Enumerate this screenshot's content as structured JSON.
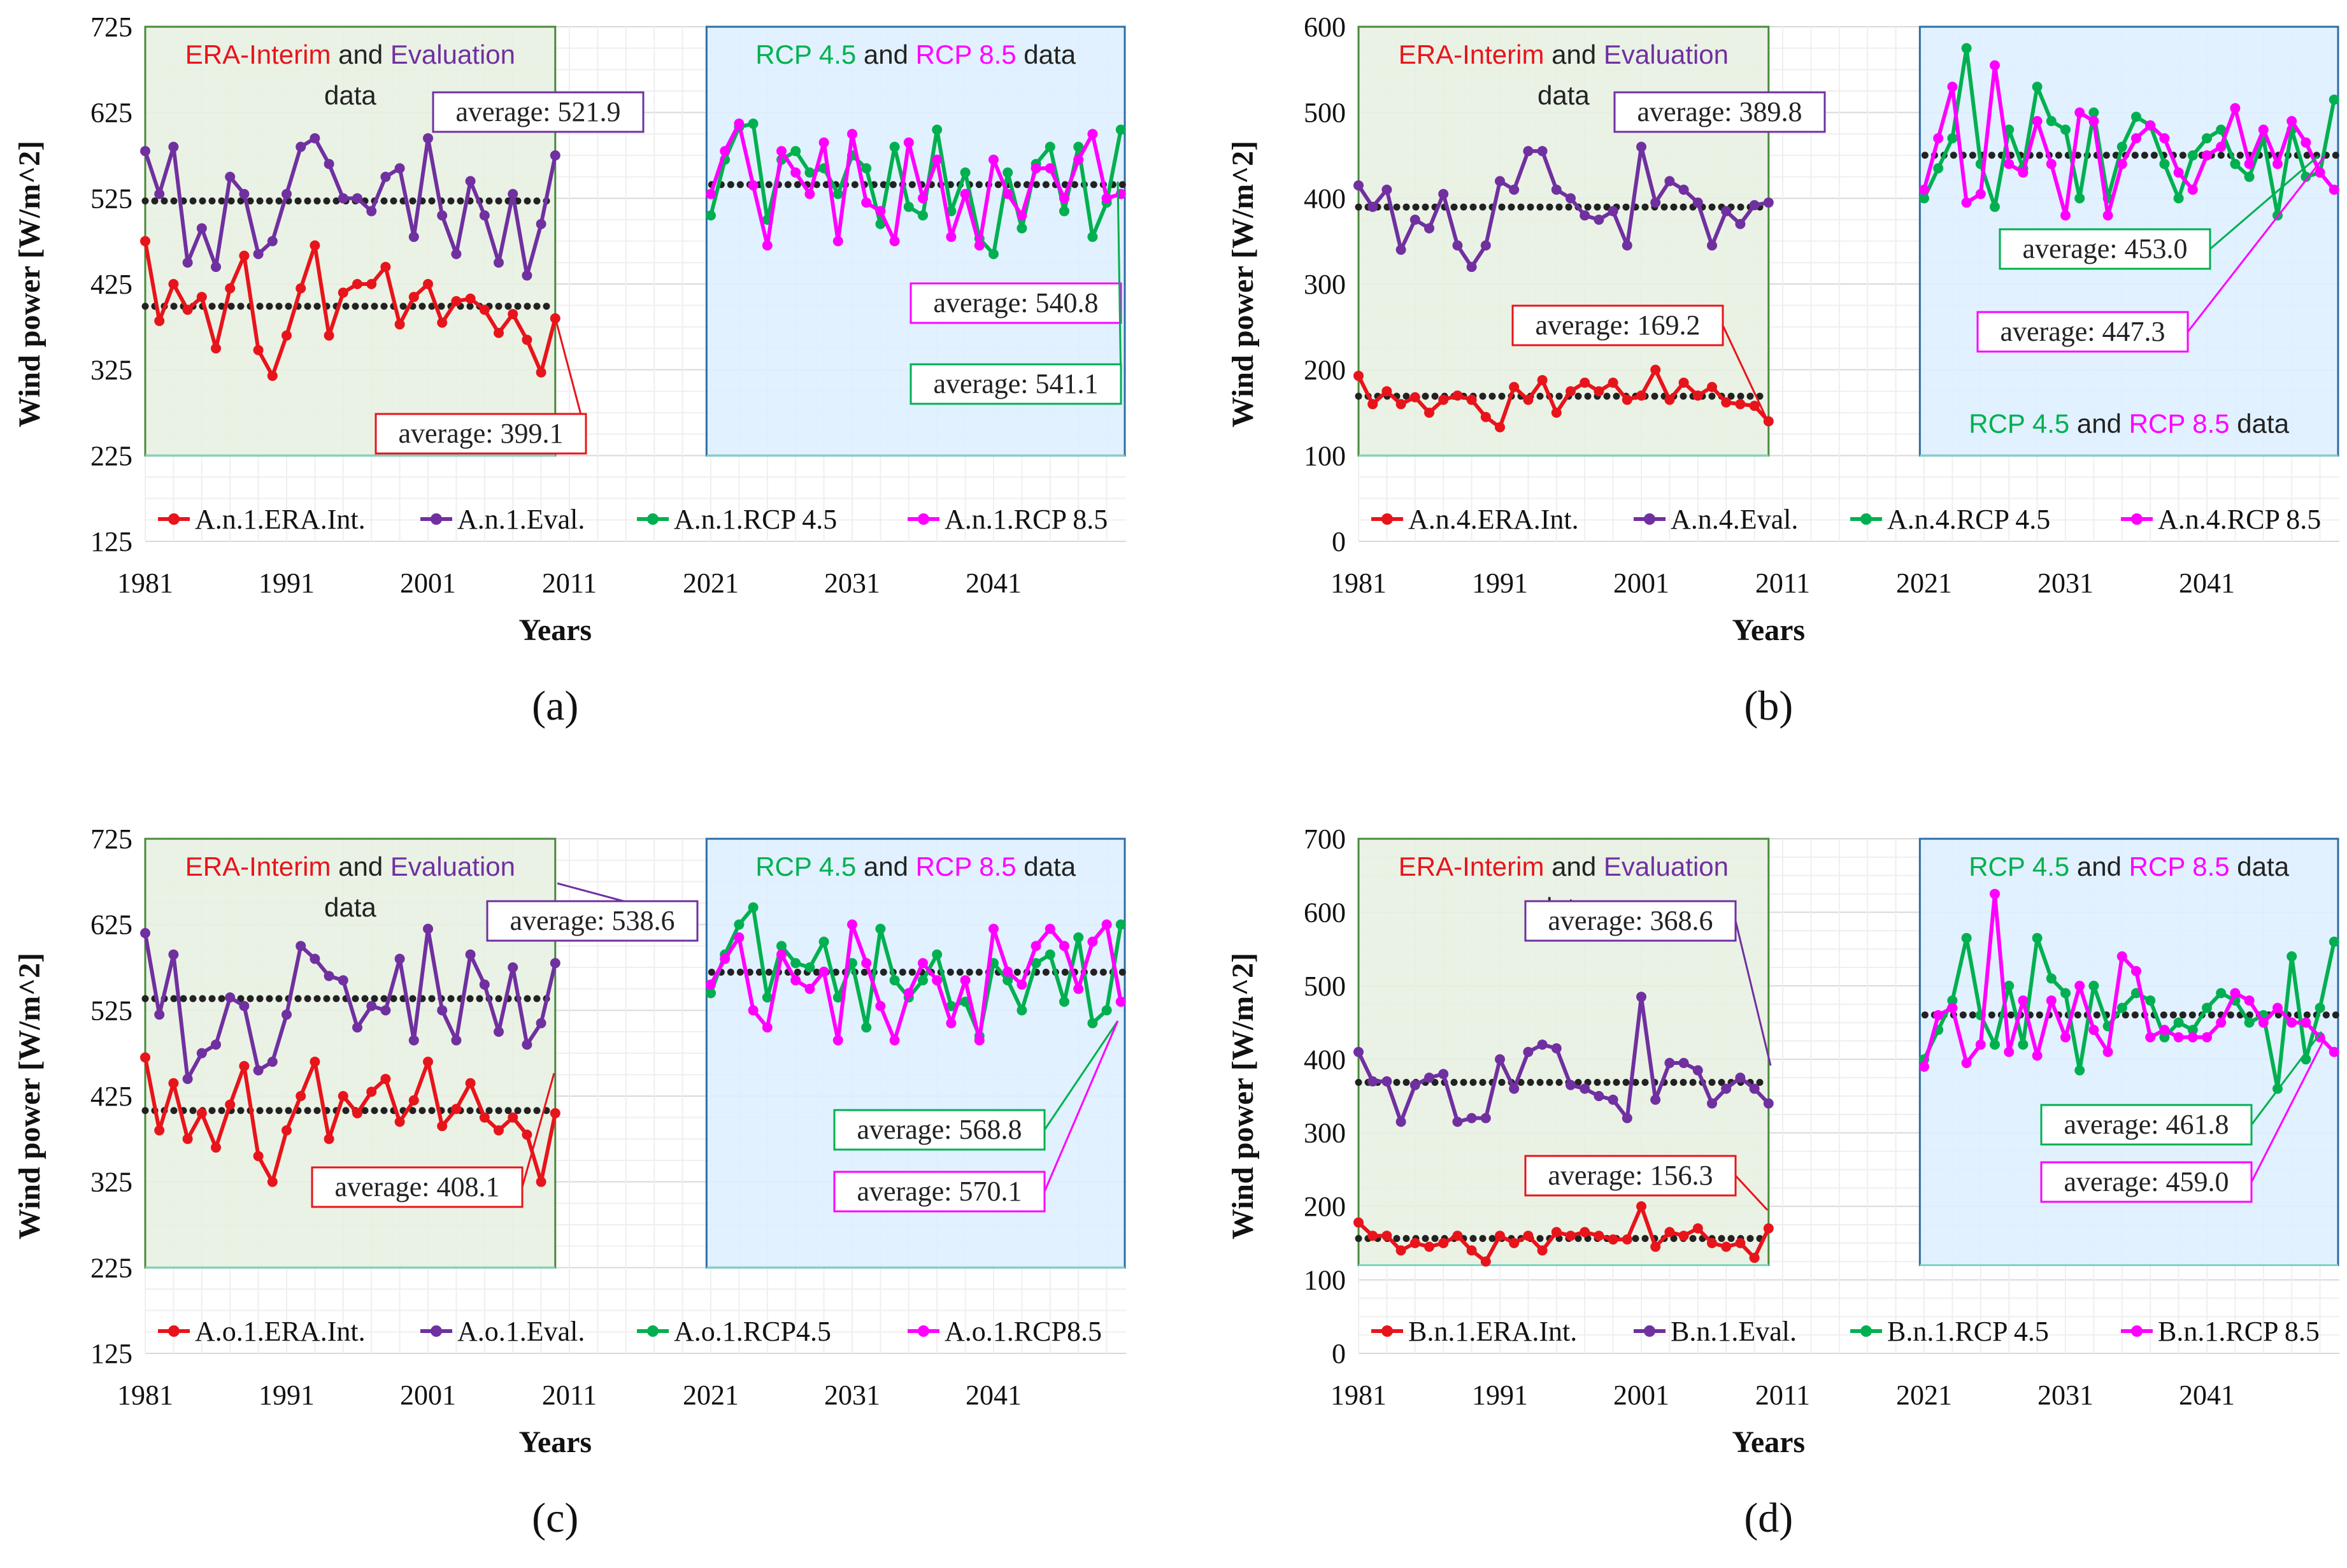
{
  "colors": {
    "era": "#e8141b",
    "eval": "#7030a0",
    "rcp45": "#00b050",
    "rcp85": "#ff00ff",
    "avgline": "#222222",
    "box_left_fill": "#e6f0e0",
    "box_right_fill": "#dcefff",
    "box_left_border": "#4a8a3c",
    "box_right_border": "#2e6da4"
  },
  "common": {
    "ylabel": "Wind power [W/m^2]",
    "xlabel": "Years",
    "left_box": {
      "t1": "ERA-Interim",
      "t2": " and ",
      "t3": "Evaluation",
      "t4": "data"
    },
    "right_box": {
      "t1": "RCP 4.5",
      "t2": " and ",
      "t3": "RCP 8.5",
      "t4": " data"
    }
  },
  "chart_data": [
    {
      "panel": "a",
      "caption": "(a)",
      "type": "line",
      "ylim": [
        125,
        725
      ],
      "yticks": [
        "125",
        "225",
        "325",
        "425",
        "525",
        "625",
        "725"
      ],
      "xticks": [
        "1981",
        "1991",
        "2001",
        "2011",
        "2021",
        "2031",
        "2041"
      ],
      "box_bottom": 225,
      "box_bottom_right": 225,
      "right_title_bottom": false,
      "averages": [
        {
          "text": "average: 521.9",
          "series": "eval",
          "value": 521.9
        },
        {
          "text": "average: 399.1",
          "series": "era",
          "value": 399.1
        },
        {
          "text": "average: 540.8",
          "series": "rcp85",
          "value": 540.8
        },
        {
          "text": "average: 541.1",
          "series": "rcp45",
          "value": 541.1
        }
      ],
      "series": [
        {
          "name": "A.n.1.ERA.Int.",
          "key": "era",
          "x_start": 1981,
          "values": [
            475,
            382,
            425,
            395,
            410,
            350,
            420,
            458,
            348,
            318,
            365,
            420,
            470,
            365,
            415,
            425,
            425,
            445,
            378,
            410,
            425,
            380,
            405,
            408,
            395,
            368,
            390,
            360,
            322,
            385
          ]
        },
        {
          "name": "A.n.1.Eval.",
          "key": "eval",
          "x_start": 1981,
          "values": [
            580,
            530,
            585,
            450,
            490,
            445,
            550,
            530,
            460,
            475,
            530,
            585,
            595,
            565,
            525,
            525,
            510,
            550,
            560,
            480,
            595,
            505,
            460,
            545,
            505,
            450,
            530,
            435,
            495,
            575
          ]
        },
        {
          "name": "A.n.1.RCP 4.5",
          "key": "rcp45",
          "x_start": 2021,
          "values": [
            505,
            570,
            608,
            612,
            500,
            570,
            580,
            555,
            560,
            530,
            575,
            560,
            495,
            585,
            515,
            505,
            605,
            510,
            555,
            478,
            460,
            555,
            490,
            565,
            585,
            510,
            585,
            480,
            520,
            605
          ]
        },
        {
          "name": "A.n.1.RCP 8.5",
          "key": "rcp85",
          "x_start": 2021,
          "values": [
            530,
            580,
            612,
            540,
            470,
            580,
            555,
            530,
            590,
            475,
            600,
            520,
            510,
            475,
            590,
            525,
            570,
            480,
            530,
            470,
            570,
            530,
            505,
            560,
            560,
            525,
            570,
            600,
            525,
            530
          ]
        }
      ]
    },
    {
      "panel": "b",
      "caption": "(b)",
      "type": "line",
      "ylim": [
        0,
        600
      ],
      "yticks": [
        "0",
        "100",
        "200",
        "300",
        "400",
        "500",
        "600"
      ],
      "xticks": [
        "1981",
        "1991",
        "2001",
        "2011",
        "2021",
        "2031",
        "2041"
      ],
      "box_bottom": 100,
      "box_bottom_right": 100,
      "right_title_bottom": true,
      "averages": [
        {
          "text": "average: 389.8",
          "series": "eval",
          "value": 389.8
        },
        {
          "text": "average: 169.2",
          "series": "era",
          "value": 169.2
        },
        {
          "text": "average: 453.0",
          "series": "rcp45",
          "value": 453.0
        },
        {
          "text": "average: 447.3",
          "series": "rcp85",
          "value": 447.3
        }
      ],
      "series": [
        {
          "name": "A.n.4.ERA.Int.",
          "key": "era",
          "x_start": 1981,
          "values": [
            193,
            160,
            175,
            160,
            168,
            150,
            165,
            170,
            165,
            145,
            133,
            180,
            165,
            188,
            150,
            175,
            185,
            175,
            185,
            165,
            170,
            200,
            165,
            185,
            170,
            180,
            162,
            160,
            158,
            140
          ]
        },
        {
          "name": "A.n.4.Eval.",
          "key": "eval",
          "x_start": 1981,
          "values": [
            415,
            390,
            410,
            340,
            375,
            365,
            405,
            345,
            320,
            345,
            420,
            410,
            455,
            455,
            410,
            400,
            380,
            375,
            385,
            345,
            460,
            395,
            420,
            410,
            395,
            345,
            385,
            370,
            392,
            395
          ]
        },
        {
          "name": "A.n.4.RCP 4.5",
          "key": "rcp45",
          "x_start": 2021,
          "values": [
            400,
            435,
            470,
            575,
            440,
            390,
            480,
            435,
            530,
            490,
            480,
            400,
            500,
            400,
            460,
            495,
            485,
            440,
            400,
            450,
            470,
            480,
            440,
            425,
            470,
            380,
            480,
            425,
            430,
            515
          ]
        },
        {
          "name": "A.n.4.RCP 8.5",
          "key": "rcp85",
          "x_start": 2021,
          "values": [
            410,
            470,
            530,
            395,
            405,
            555,
            440,
            430,
            490,
            440,
            380,
            500,
            490,
            380,
            440,
            470,
            485,
            470,
            430,
            410,
            450,
            460,
            505,
            440,
            480,
            440,
            490,
            465,
            430,
            410
          ]
        }
      ]
    },
    {
      "panel": "c",
      "caption": "(c)",
      "type": "line",
      "ylim": [
        125,
        725
      ],
      "yticks": [
        "125",
        "225",
        "325",
        "425",
        "525",
        "625",
        "725"
      ],
      "xticks": [
        "1981",
        "1991",
        "2001",
        "2011",
        "2021",
        "2031",
        "2041"
      ],
      "box_bottom": 225,
      "box_bottom_right": 225,
      "right_title_bottom": false,
      "averages": [
        {
          "text": "average: 538.6",
          "series": "eval",
          "value": 538.6
        },
        {
          "text": "average: 408.1",
          "series": "era",
          "value": 408.1
        },
        {
          "text": "average: 568.8",
          "series": "rcp45",
          "value": 568.8
        },
        {
          "text": "average: 570.1",
          "series": "rcp85",
          "value": 570.1
        }
      ],
      "series": [
        {
          "name": "A.o.1.ERA.Int.",
          "key": "era",
          "x_start": 1981,
          "values": [
            470,
            385,
            440,
            375,
            405,
            365,
            415,
            460,
            355,
            325,
            385,
            425,
            465,
            375,
            425,
            405,
            430,
            445,
            395,
            420,
            465,
            390,
            410,
            440,
            400,
            385,
            400,
            380,
            325,
            405
          ]
        },
        {
          "name": "A.o.1.Eval.",
          "key": "eval",
          "x_start": 1981,
          "values": [
            615,
            520,
            590,
            445,
            475,
            485,
            540,
            530,
            455,
            465,
            520,
            600,
            585,
            565,
            560,
            505,
            530,
            525,
            585,
            490,
            620,
            525,
            490,
            590,
            555,
            500,
            575,
            485,
            510,
            580
          ]
        },
        {
          "name": "A.o.1.RCP4.5",
          "key": "rcp45",
          "x_start": 2021,
          "values": [
            545,
            590,
            625,
            645,
            540,
            600,
            580,
            575,
            605,
            540,
            580,
            505,
            620,
            560,
            540,
            560,
            590,
            530,
            535,
            495,
            580,
            560,
            525,
            580,
            590,
            535,
            610,
            510,
            525,
            625
          ]
        },
        {
          "name": "A.o.1.RCP8.5",
          "key": "rcp85",
          "x_start": 2021,
          "values": [
            555,
            585,
            610,
            525,
            505,
            590,
            560,
            550,
            570,
            490,
            625,
            580,
            530,
            490,
            545,
            580,
            560,
            510,
            560,
            490,
            620,
            570,
            555,
            600,
            620,
            600,
            550,
            605,
            625,
            535
          ]
        }
      ]
    },
    {
      "panel": "d",
      "caption": "(d)",
      "type": "line",
      "ylim": [
        0,
        700
      ],
      "yticks": [
        "0",
        "100",
        "200",
        "300",
        "400",
        "500",
        "600",
        "700"
      ],
      "xticks": [
        "1981",
        "1991",
        "2001",
        "2011",
        "2021",
        "2031",
        "2041"
      ],
      "box_bottom": 120,
      "box_bottom_right": 120,
      "right_title_bottom": false,
      "averages": [
        {
          "text": "average: 368.6",
          "series": "eval",
          "value": 368.6
        },
        {
          "text": "average: 156.3",
          "series": "era",
          "value": 156.3
        },
        {
          "text": "average: 461.8",
          "series": "rcp45",
          "value": 461.8
        },
        {
          "text": "average: 459.0",
          "series": "rcp85",
          "value": 459.0
        }
      ],
      "series": [
        {
          "name": "B.n.1.ERA.Int.",
          "key": "era",
          "x_start": 1981,
          "values": [
            178,
            160,
            160,
            140,
            150,
            145,
            150,
            160,
            140,
            125,
            160,
            150,
            160,
            140,
            165,
            160,
            165,
            160,
            155,
            155,
            200,
            145,
            165,
            160,
            170,
            150,
            145,
            150,
            130,
            170
          ]
        },
        {
          "name": "B.n.1.Eval.",
          "key": "eval",
          "x_start": 1981,
          "values": [
            410,
            370,
            370,
            315,
            365,
            375,
            380,
            315,
            320,
            320,
            400,
            360,
            410,
            420,
            415,
            365,
            360,
            350,
            345,
            320,
            485,
            345,
            395,
            395,
            385,
            340,
            360,
            375,
            360,
            340
          ]
        },
        {
          "name": "B.n.1.RCP 4.5",
          "key": "rcp45",
          "x_start": 2021,
          "values": [
            400,
            440,
            480,
            565,
            460,
            420,
            500,
            420,
            565,
            510,
            490,
            385,
            500,
            445,
            470,
            490,
            480,
            430,
            450,
            440,
            470,
            490,
            480,
            450,
            460,
            360,
            540,
            400,
            470,
            560
          ]
        },
        {
          "name": "B.n.1.RCP 8.5",
          "key": "rcp85",
          "x_start": 2021,
          "values": [
            390,
            460,
            470,
            395,
            420,
            625,
            410,
            480,
            405,
            480,
            430,
            500,
            440,
            410,
            540,
            520,
            430,
            440,
            430,
            430,
            430,
            450,
            490,
            480,
            450,
            470,
            450,
            450,
            430,
            410
          ]
        }
      ]
    }
  ]
}
